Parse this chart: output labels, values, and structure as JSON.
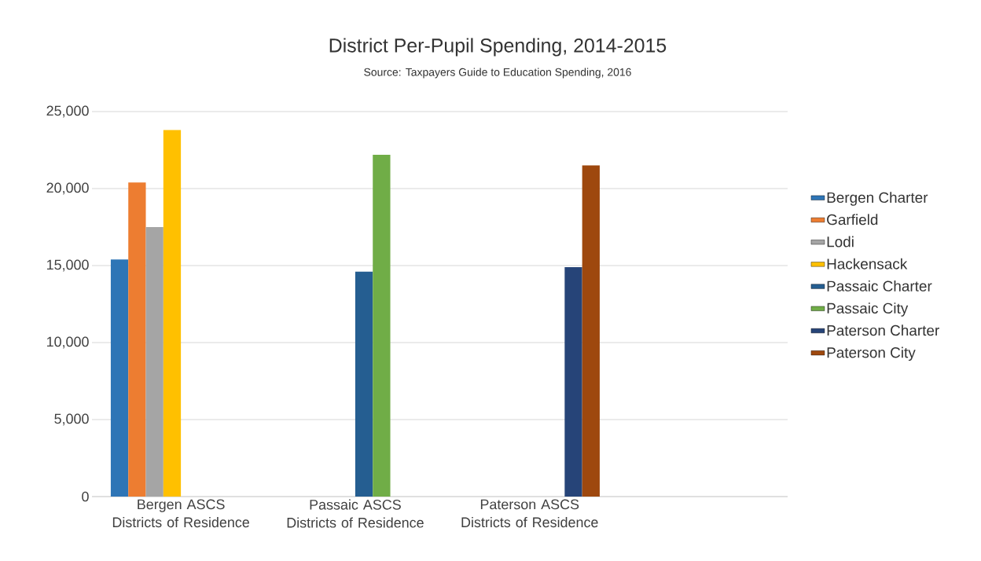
{
  "chart_data": {
    "type": "bar",
    "title": "District Per-Pupil Spending, 2014-2015",
    "annotations": [
      "Source:  Taxpayers Guide to Education Spending, 2016"
    ],
    "categories": [
      "Bergen ASCS Districts of Residence",
      "Passaic ASCS Districts of Residence",
      "Paterson ASCS Districts of Residence"
    ],
    "series": [
      {
        "name": "Bergen Charter",
        "color": "#2e75b6",
        "values": [
          15400,
          null,
          null
        ]
      },
      {
        "name": "Garfield",
        "color": "#ed7d31",
        "values": [
          20400,
          null,
          null
        ]
      },
      {
        "name": "Lodi",
        "color": "#a5a5a5",
        "values": [
          17500,
          null,
          null
        ]
      },
      {
        "name": "Hackensack",
        "color": "#ffc000",
        "values": [
          23800,
          null,
          null
        ]
      },
      {
        "name": "Passaic Charter",
        "color": "#255e91",
        "values": [
          null,
          14600,
          null
        ]
      },
      {
        "name": "Passaic City",
        "color": "#70ad47",
        "values": [
          null,
          22200,
          null
        ]
      },
      {
        "name": "Paterson Charter",
        "color": "#264478",
        "values": [
          null,
          null,
          14900
        ]
      },
      {
        "name": "Paterson City",
        "color": "#9e480e",
        "values": [
          null,
          null,
          21500
        ]
      }
    ],
    "ylim": [
      0,
      25000
    ],
    "yticks": [
      0,
      {
        "value": 5000,
        "label": "5,000"
      },
      {
        "value": 10000,
        "label": "10,000"
      },
      {
        "value": 15000,
        "label": "15,000"
      },
      {
        "value": 20000,
        "label": "20,000"
      },
      {
        "value": 25000,
        "label": "25,000"
      }
    ],
    "grid": "y",
    "legend": "right"
  }
}
